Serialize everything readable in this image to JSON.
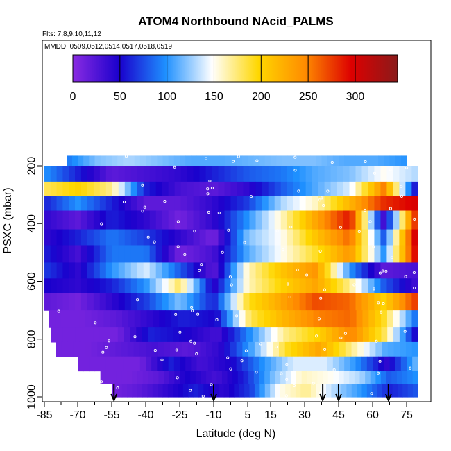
{
  "chart_data": {
    "type": "heatmap",
    "title": "ATOM4 Northbound NAcid_PALMS",
    "flights_label": "Flts: 7,8,9,10,11,12",
    "dates_label": "MMDD: 0509,0512,0514,0517,0518,0519",
    "xlabel": "Latitude (deg N)",
    "ylabel": "PSXC (mbar)",
    "x_ticks": [
      -85,
      -70,
      -55,
      -40,
      -25,
      -10,
      5,
      15,
      30,
      45,
      60,
      75
    ],
    "x_tick_labels": [
      "-85",
      "-70",
      "-55",
      "-40",
      "-25",
      "-10",
      "5",
      "15",
      "30",
      "45",
      "60",
      "75"
    ],
    "y_ticks": [
      200,
      400,
      600,
      800,
      1000
    ],
    "y_tick_labels": [
      "200",
      "400",
      "600",
      "800",
      "1000"
    ],
    "xlim": [
      -85,
      83
    ],
    "ylim": [
      1000,
      160
    ],
    "colorbar": {
      "min": 0,
      "max": 345,
      "ticks": [
        0,
        50,
        100,
        150,
        200,
        250,
        300
      ],
      "tick_labels": [
        "0",
        "50",
        "100",
        "150",
        "200",
        "250",
        "300"
      ],
      "colors": [
        "#8a2be2",
        "#1a00cc",
        "#1e90ff",
        "#ffffff",
        "#ffd700",
        "#ff8c00",
        "#dd0000",
        "#8b1a1a"
      ]
    },
    "layers": [
      {
        "p_top": 165,
        "p_bot": 200,
        "lat_min": -75,
        "lat_max": 75,
        "values": [
          90,
          120,
          130,
          120,
          110,
          110,
          115,
          120,
          120,
          110,
          110,
          100
        ]
      },
      {
        "p_top": 200,
        "p_bot": 255,
        "lat_min": -85,
        "lat_max": 80,
        "values": [
          100,
          60,
          20,
          30,
          40,
          60,
          80,
          90,
          110,
          120,
          150,
          130
        ]
      },
      {
        "p_top": 255,
        "p_bot": 305,
        "lat_min": -85,
        "lat_max": 80,
        "values": [
          180,
          200,
          170,
          60,
          30,
          20,
          40,
          80,
          110,
          140,
          250,
          40
        ]
      },
      {
        "p_top": 305,
        "p_bot": 355,
        "lat_min": -85,
        "lat_max": 80,
        "values": [
          60,
          100,
          60,
          20,
          20,
          40,
          70,
          130,
          160,
          220,
          280,
          300
        ]
      },
      {
        "p_top": 355,
        "p_bot": 420,
        "lat_min": -85,
        "lat_max": 80,
        "values": [
          40,
          20,
          60,
          40,
          10,
          40,
          100,
          160,
          230,
          290,
          30,
          300
        ]
      },
      {
        "p_top": 420,
        "p_bot": 475,
        "lat_min": -85,
        "lat_max": 80,
        "values": [
          40,
          60,
          90,
          70,
          40,
          10,
          120,
          150,
          210,
          260,
          80,
          320
        ]
      },
      {
        "p_top": 475,
        "p_bot": 535,
        "lat_min": -85,
        "lat_max": 80,
        "values": [
          60,
          30,
          90,
          90,
          10,
          30,
          110,
          150,
          190,
          240,
          100,
          310
        ]
      },
      {
        "p_top": 535,
        "p_bot": 590,
        "lat_min": -85,
        "lat_max": 80,
        "values": [
          70,
          40,
          100,
          140,
          80,
          20,
          160,
          210,
          240,
          100,
          20,
          30
        ]
      },
      {
        "p_top": 590,
        "p_bot": 640,
        "lat_min": -85,
        "lat_max": 80,
        "values": [
          50,
          40,
          60,
          100,
          180,
          40,
          160,
          200,
          230,
          170,
          80,
          30
        ]
      },
      {
        "p_top": 640,
        "p_bot": 700,
        "lat_min": -85,
        "lat_max": 80,
        "values": [
          20,
          10,
          40,
          70,
          120,
          60,
          190,
          230,
          270,
          260,
          200,
          280
        ]
      },
      {
        "p_top": 700,
        "p_bot": 760,
        "lat_min": -83,
        "lat_max": 80,
        "values": [
          10,
          10,
          20,
          40,
          60,
          50,
          180,
          220,
          250,
          260,
          190,
          80
        ]
      },
      {
        "p_top": 760,
        "p_bot": 810,
        "lat_min": -82,
        "lat_max": 80,
        "values": [
          10,
          10,
          10,
          60,
          50,
          30,
          100,
          170,
          200,
          250,
          180,
          40
        ]
      },
      {
        "p_top": 810,
        "p_bot": 860,
        "lat_min": -80,
        "lat_max": 80,
        "values": [
          10,
          10,
          20,
          30,
          20,
          40,
          110,
          190,
          230,
          170,
          110,
          100
        ]
      },
      {
        "p_top": 860,
        "p_bot": 910,
        "lat_min": -70,
        "lat_max": 80,
        "values": [
          10,
          10,
          10,
          60,
          30,
          50,
          100,
          140,
          140,
          100,
          40,
          120
        ]
      },
      {
        "p_top": 910,
        "p_bot": 955,
        "lat_min": -60,
        "lat_max": 80,
        "values": [
          10,
          10,
          20,
          50,
          30,
          60,
          120,
          160,
          150,
          130,
          80,
          100
        ]
      },
      {
        "p_top": 955,
        "p_bot": 1000,
        "lat_min": -55,
        "lat_max": 80,
        "values": [
          10,
          20,
          40,
          60,
          40,
          70,
          150,
          170,
          130,
          100,
          60,
          80
        ]
      }
    ],
    "arrow_latitudes": [
      -54,
      -10,
      38,
      45,
      67
    ]
  }
}
